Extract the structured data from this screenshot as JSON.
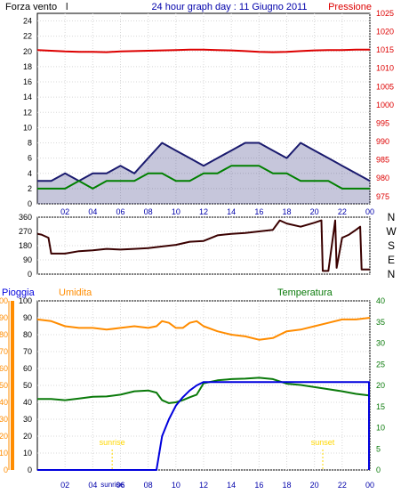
{
  "header": {
    "left_title": "Forza vento",
    "left_title_suffix": "l",
    "center_title": "24 hour graph day : 11 Giugno 2011",
    "right_title": "Pressione"
  },
  "colors": {
    "wind": "#000000",
    "wind_gust": "#1a1a6e",
    "wind_avg": "#008000",
    "pressure": "#dd0000",
    "direction": "#3a0000",
    "rain": "#0000dd",
    "humidity": "#ff8c00",
    "temperature": "#0a7a0a",
    "sun_marker": "#ffd700",
    "axis_blue": "#0000aa",
    "grid": "#d8d8d8"
  },
  "x_ticks": [
    "02",
    "04",
    "06",
    "08",
    "10",
    "12",
    "14",
    "16",
    "18",
    "20",
    "22",
    "00"
  ],
  "chart_data": [
    {
      "type": "line",
      "name": "wind-pressure",
      "y_left_ticks": [
        "24",
        "22",
        "20",
        "18",
        "16",
        "14",
        "12",
        "10",
        "8",
        "6",
        "4",
        "2",
        "0"
      ],
      "ylim_left": [
        0,
        25
      ],
      "y_right_ticks": [
        "1025",
        "1020",
        "1015",
        "1010",
        "1005",
        "1000",
        "995",
        "990",
        "985",
        "980",
        "975"
      ],
      "ylim_right": [
        973,
        1025
      ],
      "x": [
        0,
        1,
        2,
        3,
        4,
        5,
        6,
        7,
        8,
        9,
        10,
        11,
        12,
        13,
        14,
        15,
        16,
        17,
        18,
        19,
        20,
        21,
        22,
        23,
        24
      ],
      "series": [
        {
          "role": "wind",
          "axis": "left",
          "values": [
            3,
            3,
            4,
            3,
            4,
            4,
            5,
            4,
            6,
            8,
            7,
            6,
            5,
            6,
            7,
            8,
            8,
            7,
            6,
            8,
            7,
            6,
            5,
            4,
            3
          ]
        },
        {
          "role": "wind_avg",
          "axis": "left",
          "values": [
            2,
            2,
            2,
            3,
            2,
            3,
            3,
            3,
            4,
            4,
            3,
            3,
            4,
            4,
            5,
            5,
            5,
            4,
            4,
            3,
            3,
            3,
            2,
            2,
            2
          ]
        },
        {
          "role": "pressure",
          "axis": "right",
          "values": [
            1015,
            1014.8,
            1014.6,
            1014.5,
            1014.5,
            1014.4,
            1014.6,
            1014.7,
            1014.8,
            1014.9,
            1015,
            1015.1,
            1015.1,
            1015,
            1014.9,
            1014.7,
            1014.5,
            1014.4,
            1014.5,
            1014.7,
            1014.9,
            1015,
            1015,
            1015.1,
            1015.1
          ]
        }
      ]
    },
    {
      "type": "line",
      "name": "wind-direction",
      "y_ticks": [
        "360",
        "270",
        "180",
        "90",
        "0"
      ],
      "ylim": [
        0,
        360
      ],
      "direction_labels": [
        "N",
        "W",
        "S",
        "E",
        "N"
      ],
      "x": [
        0,
        0.3,
        0.8,
        1,
        2,
        3,
        4,
        5,
        6,
        7,
        8,
        9,
        10,
        11,
        12,
        13,
        14,
        15,
        16,
        17,
        17.5,
        18,
        19,
        20,
        20.5,
        20.6,
        21,
        21.5,
        21.6,
        22,
        22.5,
        23,
        23.3,
        23.4,
        24
      ],
      "values": [
        255,
        250,
        230,
        130,
        130,
        145,
        150,
        160,
        155,
        160,
        165,
        175,
        185,
        205,
        210,
        245,
        255,
        260,
        270,
        280,
        340,
        320,
        300,
        325,
        340,
        20,
        20,
        340,
        40,
        230,
        250,
        280,
        300,
        30,
        30
      ]
    },
    {
      "type": "line",
      "name": "rain-humidity-temperature",
      "labels": {
        "rain": "Pioggia",
        "humidity": "Umidita",
        "temperature": "Temperatura"
      },
      "rain_ticks": [
        "100",
        "90",
        "80",
        "70",
        "60",
        "50",
        "40",
        "30",
        "20",
        "10",
        "0"
      ],
      "humidity_ticks": [
        "100",
        "90",
        "80",
        "70",
        "60",
        "50",
        "40",
        "30",
        "20",
        "10",
        "0"
      ],
      "temp_ticks": [
        "40",
        "35",
        "30",
        "25",
        "20",
        "15",
        "10",
        "5",
        "0"
      ],
      "ylim_pct": [
        0,
        100
      ],
      "ylim_temp": [
        0,
        40
      ],
      "sunrise_label": "sunrise",
      "sunset_label": "sunset",
      "sunrise_x": 5.4,
      "sunset_x": 20.6,
      "x": [
        0,
        1,
        2,
        3,
        4,
        5,
        6,
        7,
        8,
        8.6,
        9,
        9.5,
        10,
        10.5,
        11,
        11.5,
        12,
        13,
        14,
        15,
        16,
        17,
        18,
        19,
        20,
        21,
        22,
        23,
        24
      ],
      "series": [
        {
          "role": "rain",
          "axis": "pct",
          "values": [
            0,
            0,
            0,
            0,
            0,
            0,
            0,
            0,
            0,
            0,
            20,
            30,
            38,
            43,
            47,
            50,
            52,
            52,
            52,
            52,
            52,
            52,
            52,
            52,
            52,
            52,
            52,
            52,
            52
          ]
        },
        {
          "role": "humidity",
          "axis": "pct",
          "values": [
            89,
            88,
            85,
            84,
            84,
            83,
            84,
            85,
            84,
            85,
            88,
            87,
            84,
            84,
            87,
            88,
            85,
            82,
            80,
            79,
            77,
            78,
            82,
            83,
            85,
            87,
            89,
            89,
            90
          ]
        },
        {
          "role": "temperature",
          "axis": "temp",
          "values": [
            16.8,
            16.8,
            16.5,
            16.9,
            17.3,
            17.4,
            17.8,
            18.6,
            18.8,
            18.3,
            16.5,
            15.8,
            16,
            16.5,
            17.2,
            17.8,
            20.5,
            21.2,
            21.5,
            21.6,
            21.8,
            21.5,
            20.4,
            20.1,
            19.6,
            19.1,
            18.6,
            18,
            17.6
          ]
        }
      ]
    }
  ]
}
